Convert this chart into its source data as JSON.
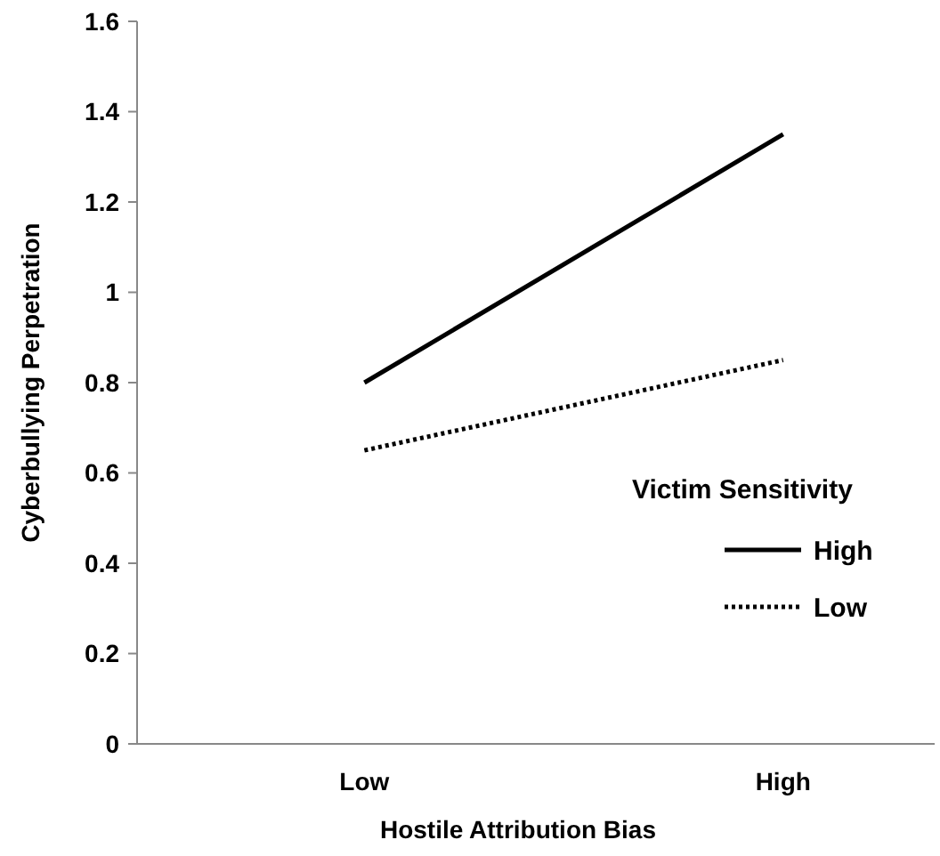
{
  "chart_data": {
    "type": "line",
    "xlabel": "Hostile Attribution Bias",
    "ylabel": "Cyberbullying Perpetration",
    "legend_title": "Victim Sensitivity",
    "legend": "right",
    "grid": false,
    "categories": [
      "Low",
      "High"
    ],
    "ylim": [
      0,
      1.6
    ],
    "yticks": [
      0,
      0.2,
      0.4,
      0.6,
      0.8,
      1,
      1.2,
      1.4,
      1.6
    ],
    "series": [
      {
        "name": "High",
        "color": "#000000",
        "line_style": "solid",
        "values": [
          0.8,
          1.35
        ]
      },
      {
        "name": "Low",
        "color": "#000000",
        "line_style": "dotted",
        "values": [
          0.65,
          0.85
        ]
      }
    ]
  }
}
